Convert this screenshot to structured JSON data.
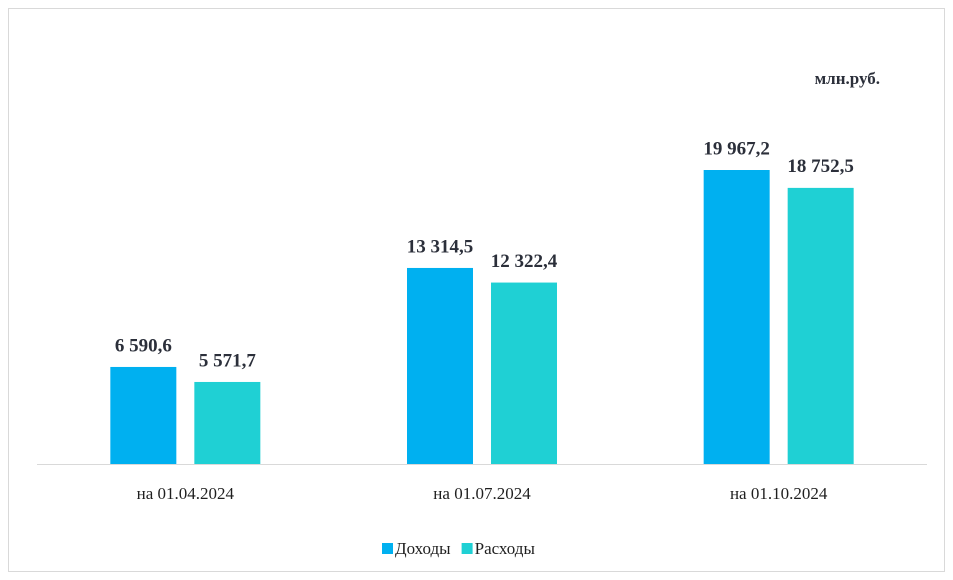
{
  "chart_data": {
    "type": "bar",
    "unit_label": "млн.руб.",
    "categories": [
      "на 01.04.2024",
      "на 01.07.2024",
      "на 01.10.2024"
    ],
    "series": [
      {
        "name": "Доходы",
        "color": "#00b0f0",
        "values": [
          6590.6,
          13314.5,
          19967.2
        ],
        "value_labels": [
          "6 590,6",
          "13 314,5",
          "19 967,2"
        ]
      },
      {
        "name": "Расходы",
        "color": "#1fd0d4",
        "values": [
          5571.7,
          12322.4,
          18752.5
        ],
        "value_labels": [
          "5 571,7",
          "12 322,4",
          "18 752,5"
        ]
      }
    ],
    "legend": "bottom"
  }
}
